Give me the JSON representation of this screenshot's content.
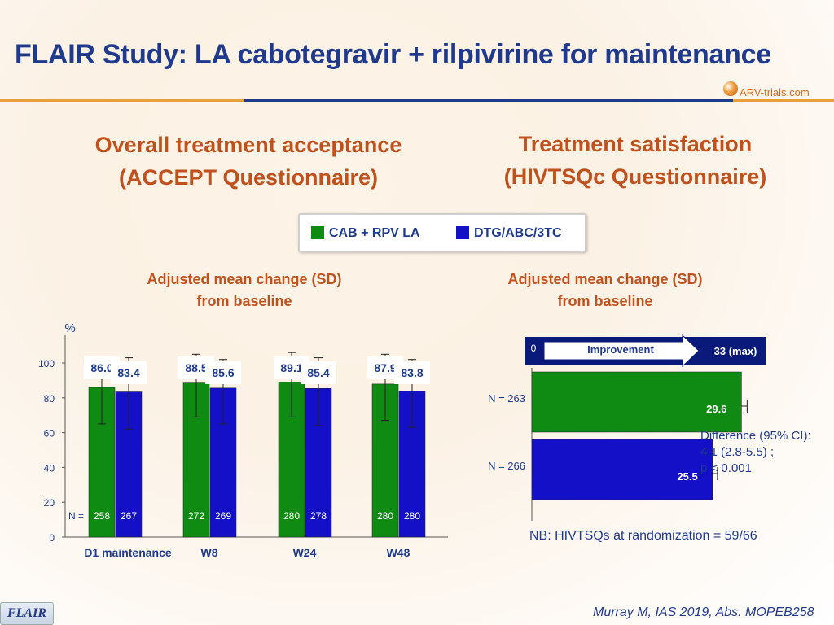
{
  "header": {
    "title": "FLAIR Study: LA cabotegravir + rilpivirine for maintenance",
    "logo": {
      "text": "ARV-trials.com",
      "icon": "arv-trials-logo-icon"
    }
  },
  "sections": {
    "left": {
      "title_line1": "Overall treatment acceptance",
      "title_line2": "(ACCEPT Questionnaire)",
      "subtitle_line1": "Adjusted mean change (SD)",
      "subtitle_line2": "from baseline"
    },
    "right": {
      "title_line1": "Treatment satisfaction",
      "title_line2": "(HIVTSQc Questionnaire)",
      "subtitle_line1": "Adjusted mean change (SD)",
      "subtitle_line2": "from baseline"
    }
  },
  "legend": {
    "items": [
      {
        "label": "CAB + RPV LA",
        "color": "#0f8a12"
      },
      {
        "label": "DTG/ABC/3TC",
        "color": "#1410c8"
      }
    ]
  },
  "footnote": "NB: HIVTSQs at randomization = 59/66",
  "citation": "Murray M, IAS 2019, Abs. MOPEB258",
  "footer_badge": "FLAIR",
  "chart_data": [
    {
      "type": "bar",
      "ylabel": "%",
      "ylim": [
        0,
        100
      ],
      "yticks": [
        0,
        20,
        40,
        60,
        80,
        100
      ],
      "n_prefix": "N =",
      "categories": [
        "D1 maintenance",
        "W8",
        "W24",
        "W48"
      ],
      "series": [
        {
          "name": "CAB + RPV LA",
          "color": "#0f8a12",
          "values": [
            86.0,
            88.5,
            89.1,
            87.9
          ],
          "labels": [
            "86.0",
            "88.5",
            "89.1",
            "87.9"
          ],
          "n": [
            "258",
            "272",
            "280",
            "280"
          ],
          "error_low": [
            65,
            69,
            69,
            67
          ],
          "error_high": [
            99,
            105,
            106,
            105
          ]
        },
        {
          "name": "DTG/ABC/3TC",
          "color": "#1410c8",
          "values": [
            83.4,
            85.6,
            85.4,
            83.8
          ],
          "labels": [
            "83.4",
            "85.6",
            "85.4",
            "83.8"
          ],
          "n": [
            "267",
            "269",
            "278",
            "280"
          ],
          "error_low": [
            62,
            65,
            64,
            63
          ],
          "error_high": [
            103,
            102,
            103,
            102
          ]
        }
      ]
    },
    {
      "type": "bar",
      "orientation": "horizontal",
      "xlim": [
        0,
        33
      ],
      "scale_min_label": "0",
      "scale_max_label": "33 (max)",
      "arrow_label": "Improvement",
      "bars": [
        {
          "n_label": "N = 263",
          "value": 29.6,
          "label": "29.6",
          "color": "#0f8a12",
          "ci_high": 30.4
        },
        {
          "n_label": "N = 266",
          "value": 25.5,
          "label": "25.5",
          "color": "#1410c8",
          "ci_high": 26.2
        }
      ],
      "annotation": {
        "line1": "Difference (95% CI):",
        "line2": "4.1 (2.8-5.5) ;",
        "line3": "p < 0.001"
      }
    }
  ]
}
